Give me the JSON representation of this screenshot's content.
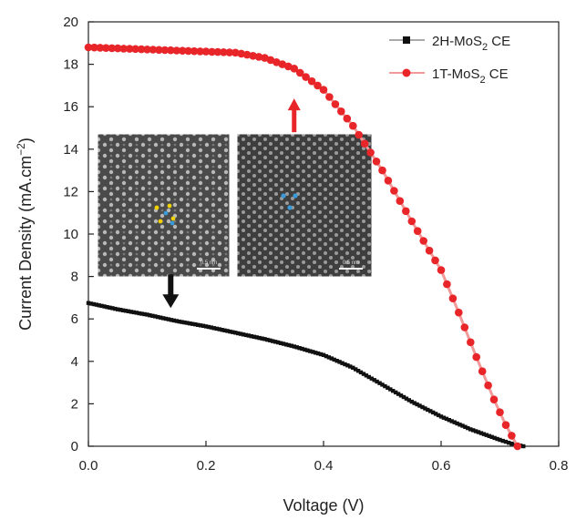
{
  "chart_data": {
    "type": "line",
    "xlabel": "Voltage (V)",
    "ylabel_parts": {
      "main": "Current Density (mA.cm",
      "sup": "−2",
      "end": ")"
    },
    "xlim": [
      0.0,
      0.8
    ],
    "ylim": [
      0,
      20
    ],
    "x_ticks": [
      "0.0",
      "0.2",
      "0.4",
      "0.6",
      "0.8"
    ],
    "y_ticks": [
      "0",
      "2",
      "4",
      "6",
      "8",
      "10",
      "12",
      "14",
      "16",
      "18",
      "20"
    ],
    "grid": false,
    "legend_position": "top-right",
    "series": [
      {
        "name_parts": {
          "a": "2H-MoS",
          "sub": "2",
          "b": " CE"
        },
        "color": "#111111",
        "marker": "square",
        "points": [
          [
            0.0,
            6.75
          ],
          [
            0.05,
            6.45
          ],
          [
            0.1,
            6.2
          ],
          [
            0.15,
            5.9
          ],
          [
            0.2,
            5.65
          ],
          [
            0.25,
            5.35
          ],
          [
            0.3,
            5.05
          ],
          [
            0.35,
            4.7
          ],
          [
            0.4,
            4.3
          ],
          [
            0.45,
            3.7
          ],
          [
            0.5,
            2.9
          ],
          [
            0.55,
            2.1
          ],
          [
            0.6,
            1.4
          ],
          [
            0.65,
            0.8
          ],
          [
            0.7,
            0.3
          ],
          [
            0.72,
            0.12
          ],
          [
            0.74,
            0.0
          ]
        ]
      },
      {
        "name_parts": {
          "a": "1T-MoS",
          "sub": "2",
          "b": "  CE"
        },
        "color": "#e8262a",
        "marker": "circle",
        "points": [
          [
            0.0,
            18.8
          ],
          [
            0.05,
            18.75
          ],
          [
            0.1,
            18.7
          ],
          [
            0.15,
            18.65
          ],
          [
            0.2,
            18.6
          ],
          [
            0.25,
            18.55
          ],
          [
            0.3,
            18.3
          ],
          [
            0.35,
            17.8
          ],
          [
            0.4,
            16.8
          ],
          [
            0.45,
            15.1
          ],
          [
            0.5,
            13.0
          ],
          [
            0.55,
            10.6
          ],
          [
            0.6,
            8.3
          ],
          [
            0.63,
            6.3
          ],
          [
            0.66,
            4.2
          ],
          [
            0.69,
            2.2
          ],
          [
            0.71,
            1.0
          ],
          [
            0.73,
            0.0
          ]
        ]
      }
    ],
    "annotations": [
      {
        "type": "arrow",
        "color": "#e8262a",
        "direction": "up",
        "at": [
          0.35,
          14.8
        ]
      },
      {
        "type": "arrow",
        "color": "#111111",
        "direction": "down",
        "at": [
          0.14,
          8.1
        ]
      }
    ],
    "insets": [
      {
        "name": "2H-MoS2 micrograph",
        "scale_bar": "0.5 nm",
        "dots": "yellow and blue"
      },
      {
        "name": "1T-MoS2 micrograph",
        "scale_bar": "0.5 nm",
        "dots": "blue"
      }
    ]
  }
}
